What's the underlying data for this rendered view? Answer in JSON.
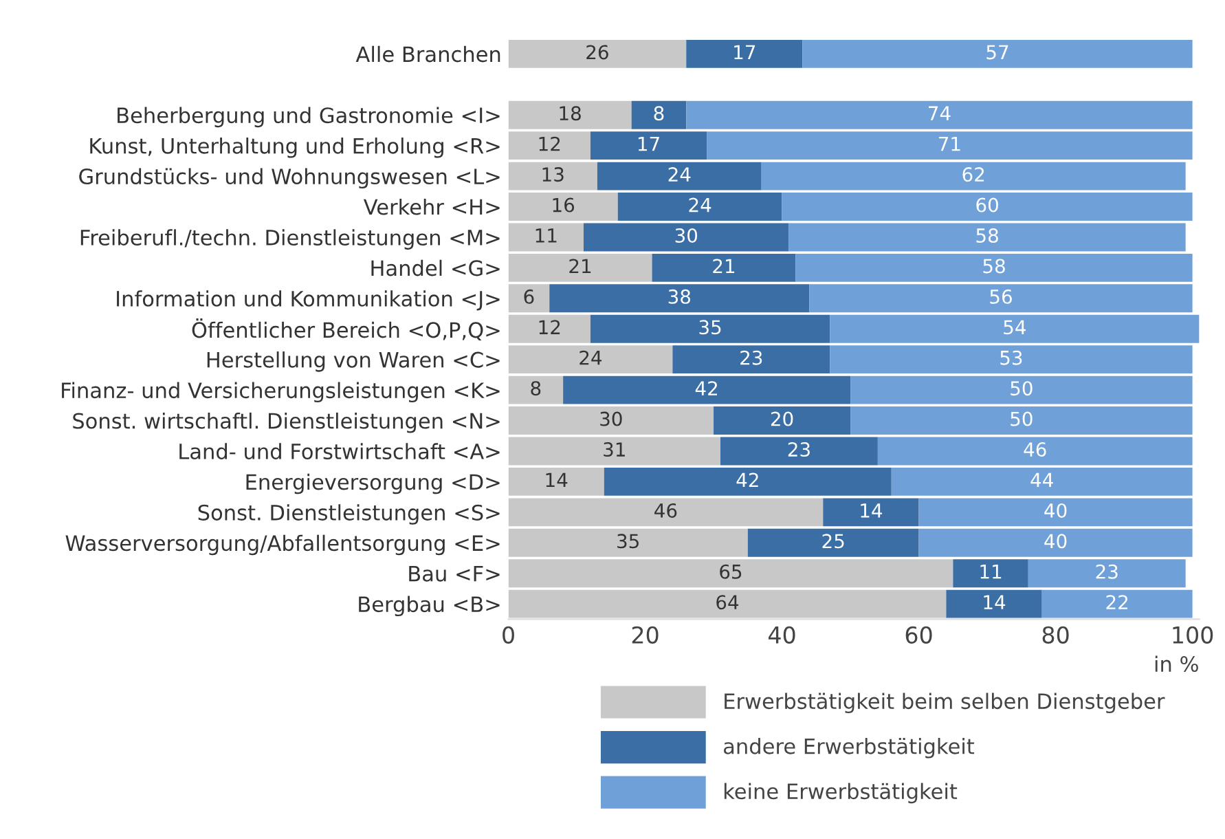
{
  "chart_data": {
    "type": "bar",
    "orientation": "horizontal",
    "stacked": true,
    "data_labels": true,
    "legend": "bottom",
    "grid": false,
    "xlabel": "in %",
    "categories": [
      "Alle Branchen",
      null,
      "Beherbergung und Gastronomie <I>",
      "Kunst, Unterhaltung und Erholung <R>",
      "Grundstücks- und Wohnungswesen <L>",
      "Verkehr <H>",
      "Freiberufl./techn. Dienstleistungen <M>",
      "Handel <G>",
      "Information und Kommunikation <J>",
      "Öffentlicher Bereich <O,P,Q>",
      "Herstellung von Waren <C>",
      "Finanz- und Versicherungsleistungen <K>",
      "Sonst. wirtschaftl. Dienstleistungen <N>",
      "Land- und Forstwirtschaft <A>",
      "Energieversorgung <D>",
      "Sonst. Dienstleistungen <S>",
      "Wasserversorgung/Abfallentsorgung <E>",
      "Bau <F>",
      "Bergbau <B>"
    ],
    "xlim": [
      0,
      101
    ],
    "xticks": [
      0,
      20,
      40,
      60,
      80,
      100
    ],
    "series": [
      {
        "name": "Erwerbstätigkeit beim selben Dienstgeber",
        "color": "#c8c8c8",
        "values": [
          26,
          null,
          18,
          12,
          13,
          16,
          11,
          21,
          6,
          12,
          24,
          8,
          30,
          31,
          14,
          46,
          35,
          65,
          64
        ]
      },
      {
        "name": "andere Erwerbstätigkeit",
        "color": "#3a6ea5",
        "values": [
          17,
          null,
          8,
          17,
          24,
          24,
          30,
          21,
          38,
          35,
          23,
          42,
          20,
          23,
          42,
          14,
          25,
          11,
          14
        ]
      },
      {
        "name": "keine Erwerbstätigkeit",
        "color": "#6fa0d8",
        "values": [
          57,
          null,
          74,
          71,
          62,
          60,
          58,
          58,
          56,
          54,
          53,
          50,
          50,
          46,
          44,
          40,
          40,
          23,
          22
        ]
      }
    ]
  }
}
